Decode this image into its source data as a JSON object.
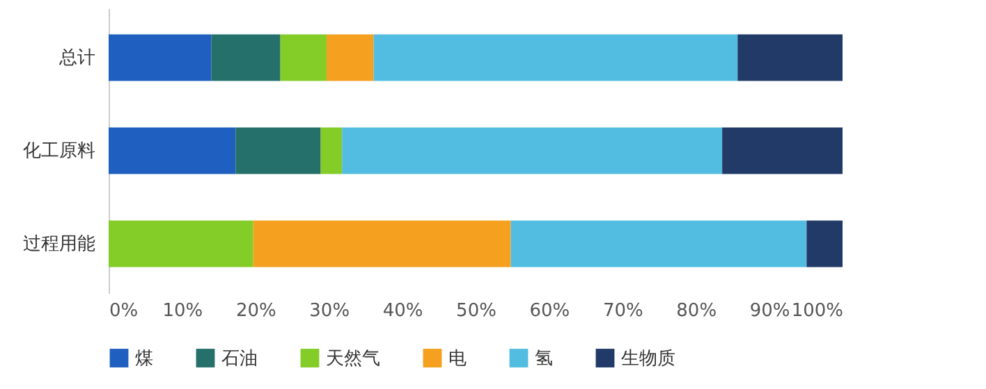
{
  "chart_data": {
    "type": "bar",
    "orientation": "horizontal",
    "stacked": true,
    "categories": [
      "总计",
      "化工原料",
      "过程用能"
    ],
    "series": [
      {
        "name": "煤",
        "color": "#1f5fbf",
        "values": [
          14.0,
          17.3,
          0
        ]
      },
      {
        "name": "石油",
        "color": "#26706b",
        "values": [
          9.4,
          11.6,
          0
        ]
      },
      {
        "name": "天然气",
        "color": "#84cc28",
        "values": [
          6.3,
          2.9,
          19.7
        ]
      },
      {
        "name": "电",
        "color": "#f5a01e",
        "values": [
          6.4,
          0,
          35.1
        ]
      },
      {
        "name": "氢",
        "color": "#52bde0",
        "values": [
          49.6,
          51.8,
          40.3
        ]
      },
      {
        "name": "生物质",
        "color": "#213a68",
        "values": [
          14.3,
          16.4,
          4.9
        ]
      }
    ],
    "xlim": [
      0,
      100
    ],
    "xticks": [
      {
        "value": 0,
        "label": "0%"
      },
      {
        "value": 10,
        "label": "10%"
      },
      {
        "value": 20,
        "label": "20%"
      },
      {
        "value": 30,
        "label": "30%"
      },
      {
        "value": 40,
        "label": "40%"
      },
      {
        "value": 50,
        "label": "50%"
      },
      {
        "value": 60,
        "label": "60%"
      },
      {
        "value": 70,
        "label": "70%"
      },
      {
        "value": 80,
        "label": "80%"
      },
      {
        "value": 90,
        "label": "90%"
      },
      {
        "value": 100,
        "label": "100%"
      }
    ],
    "grid": false,
    "legend": "bottom"
  }
}
